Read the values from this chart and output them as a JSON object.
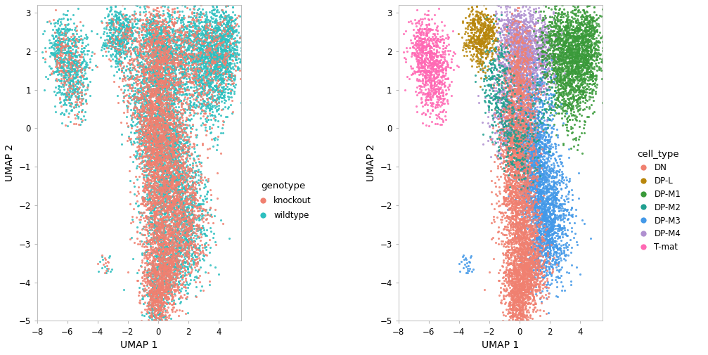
{
  "xlabel": "UMAP 1",
  "ylabel": "UMAP 2",
  "xlim": [
    -8.0,
    5.5
  ],
  "ylim": [
    -5.0,
    3.2
  ],
  "knockout_color": "#F08070",
  "wildtype_color": "#2DBFBF",
  "cell_type_colors": {
    "DN": "#F08070",
    "DP-L": "#B8860B",
    "DP-M1": "#3A9A3A",
    "DP-M2": "#20A090",
    "DP-M3": "#4499E8",
    "DP-M4": "#B090D0",
    "T-mat": "#FF69B4"
  },
  "legend1_title": "genotype",
  "legend2_title": "cell_type",
  "point_size": 5,
  "alpha": 0.85
}
